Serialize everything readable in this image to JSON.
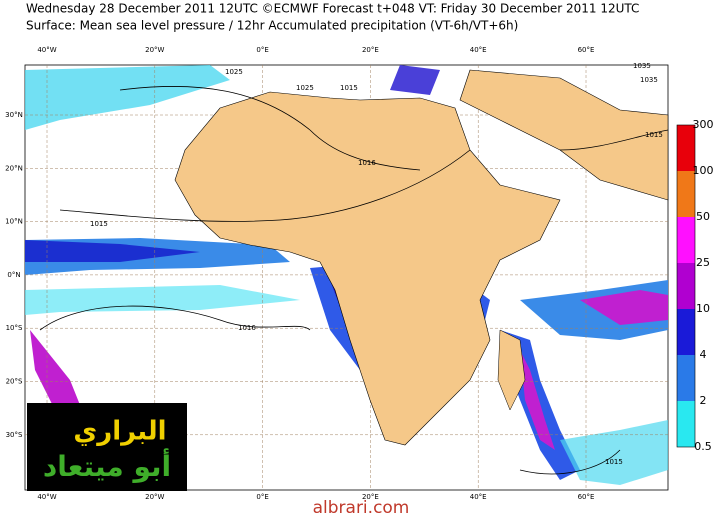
{
  "header": {
    "line1": "Wednesday 28 December 2011 12UTC ©ECMWF Forecast t+048 VT: Friday 30 December 2011 12UTC",
    "line2": "Surface: Mean sea level pressure / 12hr Accumulated precipitation (VT-6h/VT+6h)"
  },
  "map": {
    "longitudes": [
      "40°W",
      "20°W",
      "0°E",
      "20°E",
      "40°E",
      "60°E"
    ],
    "latitudes": [
      "30°N",
      "20°N",
      "10°N",
      "0°N",
      "10°S",
      "20°S",
      "30°S"
    ],
    "isobars": [
      "1025",
      "1025",
      "1015",
      "1015",
      "1016",
      "1015",
      "1035",
      "1035",
      "1016",
      "1015"
    ]
  },
  "legend": {
    "levels": [
      300,
      100,
      50,
      25,
      10,
      4,
      2,
      0.5
    ]
  },
  "watermark": {
    "line1": "البراري",
    "line2": "أبو ميتعاد"
  },
  "footer": "albrari.com"
}
